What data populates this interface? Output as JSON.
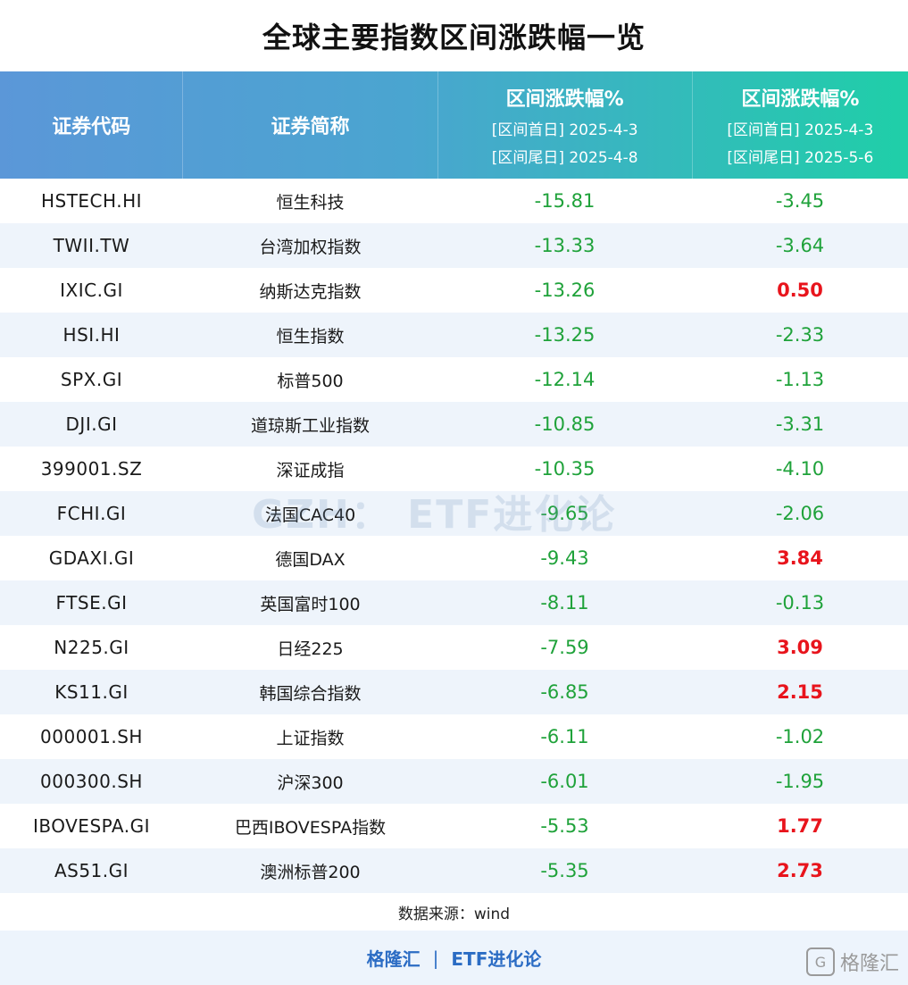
{
  "title": "全球主要指数区间涨跌幅一览",
  "header": {
    "code": "证券代码",
    "name": "证券简称",
    "period1": {
      "main": "区间涨跌幅%",
      "start": "[区间首日] 2025-4-3",
      "end": "[区间尾日] 2025-4-8"
    },
    "period2": {
      "main": "区间涨跌幅%",
      "start": "[区间首日] 2025-4-3",
      "end": "[区间尾日] 2025-5-6"
    }
  },
  "rows": [
    {
      "code": "HSTECH.HI",
      "name": "恒生科技",
      "p1": "-15.81",
      "p2": "-3.45"
    },
    {
      "code": "TWII.TW",
      "name": "台湾加权指数",
      "p1": "-13.33",
      "p2": "-3.64"
    },
    {
      "code": "IXIC.GI",
      "name": "纳斯达克指数",
      "p1": "-13.26",
      "p2": "0.50"
    },
    {
      "code": "HSI.HI",
      "name": "恒生指数",
      "p1": "-13.25",
      "p2": "-2.33"
    },
    {
      "code": "SPX.GI",
      "name": "标普500",
      "p1": "-12.14",
      "p2": "-1.13"
    },
    {
      "code": "DJI.GI",
      "name": "道琼斯工业指数",
      "p1": "-10.85",
      "p2": "-3.31"
    },
    {
      "code": "399001.SZ",
      "name": "深证成指",
      "p1": "-10.35",
      "p2": "-4.10"
    },
    {
      "code": "FCHI.GI",
      "name": "法国CAC40",
      "p1": "-9.65",
      "p2": "-2.06"
    },
    {
      "code": "GDAXI.GI",
      "name": "德国DAX",
      "p1": "-9.43",
      "p2": "3.84"
    },
    {
      "code": "FTSE.GI",
      "name": "英国富时100",
      "p1": "-8.11",
      "p2": "-0.13"
    },
    {
      "code": "N225.GI",
      "name": "日经225",
      "p1": "-7.59",
      "p2": "3.09"
    },
    {
      "code": "KS11.GI",
      "name": "韩国综合指数",
      "p1": "-6.85",
      "p2": "2.15"
    },
    {
      "code": "000001.SH",
      "name": "上证指数",
      "p1": "-6.11",
      "p2": "-1.02"
    },
    {
      "code": "000300.SH",
      "name": "沪深300",
      "p1": "-6.01",
      "p2": "-1.95"
    },
    {
      "code": "IBOVESPA.GI",
      "name": "巴西IBOVESPA指数",
      "p1": "-5.53",
      "p2": "1.77"
    },
    {
      "code": "AS51.GI",
      "name": "澳洲标普200",
      "p1": "-5.35",
      "p2": "2.73"
    }
  ],
  "source": "数据来源：wind",
  "footer": {
    "left": "格隆汇",
    "sep": "|",
    "right": "ETF进化论"
  },
  "watermark": "GZH： ETF进化论",
  "logo": {
    "mark": "G",
    "text": "格隆汇"
  },
  "colors": {
    "negative": "#1fa23a",
    "positive": "#e8141c",
    "header_start": "#5b97d8",
    "header_end": "#1fcfa8"
  }
}
